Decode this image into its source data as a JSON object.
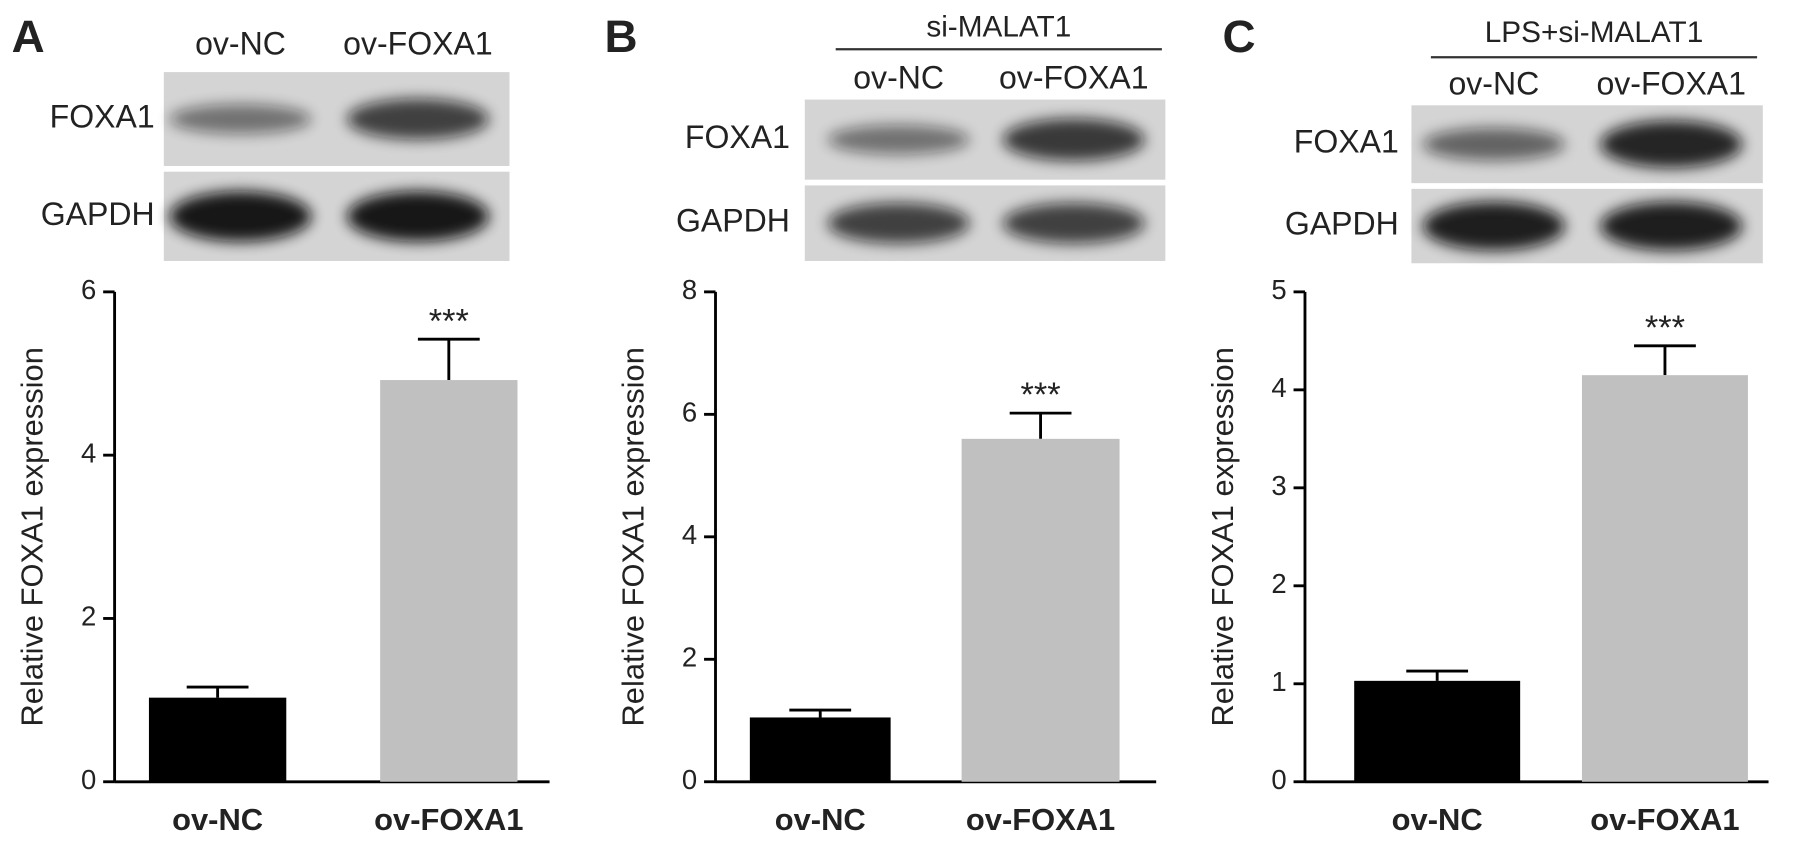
{
  "chart_data": [
    {
      "type": "bar",
      "panel": "A",
      "lanes": [
        "ov-NC",
        "ov-FOXA1"
      ],
      "blot_rows": [
        "FOXA1",
        "GAPDH"
      ],
      "ylabel": "Relative FOXA1 expression",
      "categories": [
        "ov-NC",
        "ov-FOXA1"
      ],
      "values": [
        1.03,
        4.92
      ],
      "errors": [
        0.13,
        0.5
      ],
      "colors": [
        "#000000",
        "#c0c0c0"
      ],
      "significance": [
        null,
        "***"
      ],
      "ylim": [
        0,
        6
      ],
      "yticks": [
        0,
        2,
        4,
        6
      ]
    },
    {
      "type": "bar",
      "panel": "B",
      "header": "si-MALAT1",
      "lanes": [
        "ov-NC",
        "ov-FOXA1"
      ],
      "blot_rows": [
        "FOXA1",
        "GAPDH"
      ],
      "ylabel": "Relative FOXA1 expression",
      "categories": [
        "ov-NC",
        "ov-FOXA1"
      ],
      "values": [
        1.05,
        5.6
      ],
      "errors": [
        0.12,
        0.42
      ],
      "colors": [
        "#000000",
        "#c0c0c0"
      ],
      "significance": [
        null,
        "***"
      ],
      "ylim": [
        0,
        8
      ],
      "yticks": [
        0,
        2,
        4,
        6,
        8
      ]
    },
    {
      "type": "bar",
      "panel": "C",
      "header": "LPS+si-MALAT1",
      "lanes": [
        "ov-NC",
        "ov-FOXA1"
      ],
      "blot_rows": [
        "FOXA1",
        "GAPDH"
      ],
      "ylabel": "Relative FOXA1 expression",
      "categories": [
        "ov-NC",
        "ov-FOXA1"
      ],
      "values": [
        1.03,
        4.15
      ],
      "errors": [
        0.1,
        0.3
      ],
      "colors": [
        "#000000",
        "#c0c0c0"
      ],
      "significance": [
        null,
        "***"
      ],
      "ylim": [
        0,
        5
      ],
      "yticks": [
        0,
        1,
        2,
        3,
        4,
        5
      ]
    }
  ]
}
